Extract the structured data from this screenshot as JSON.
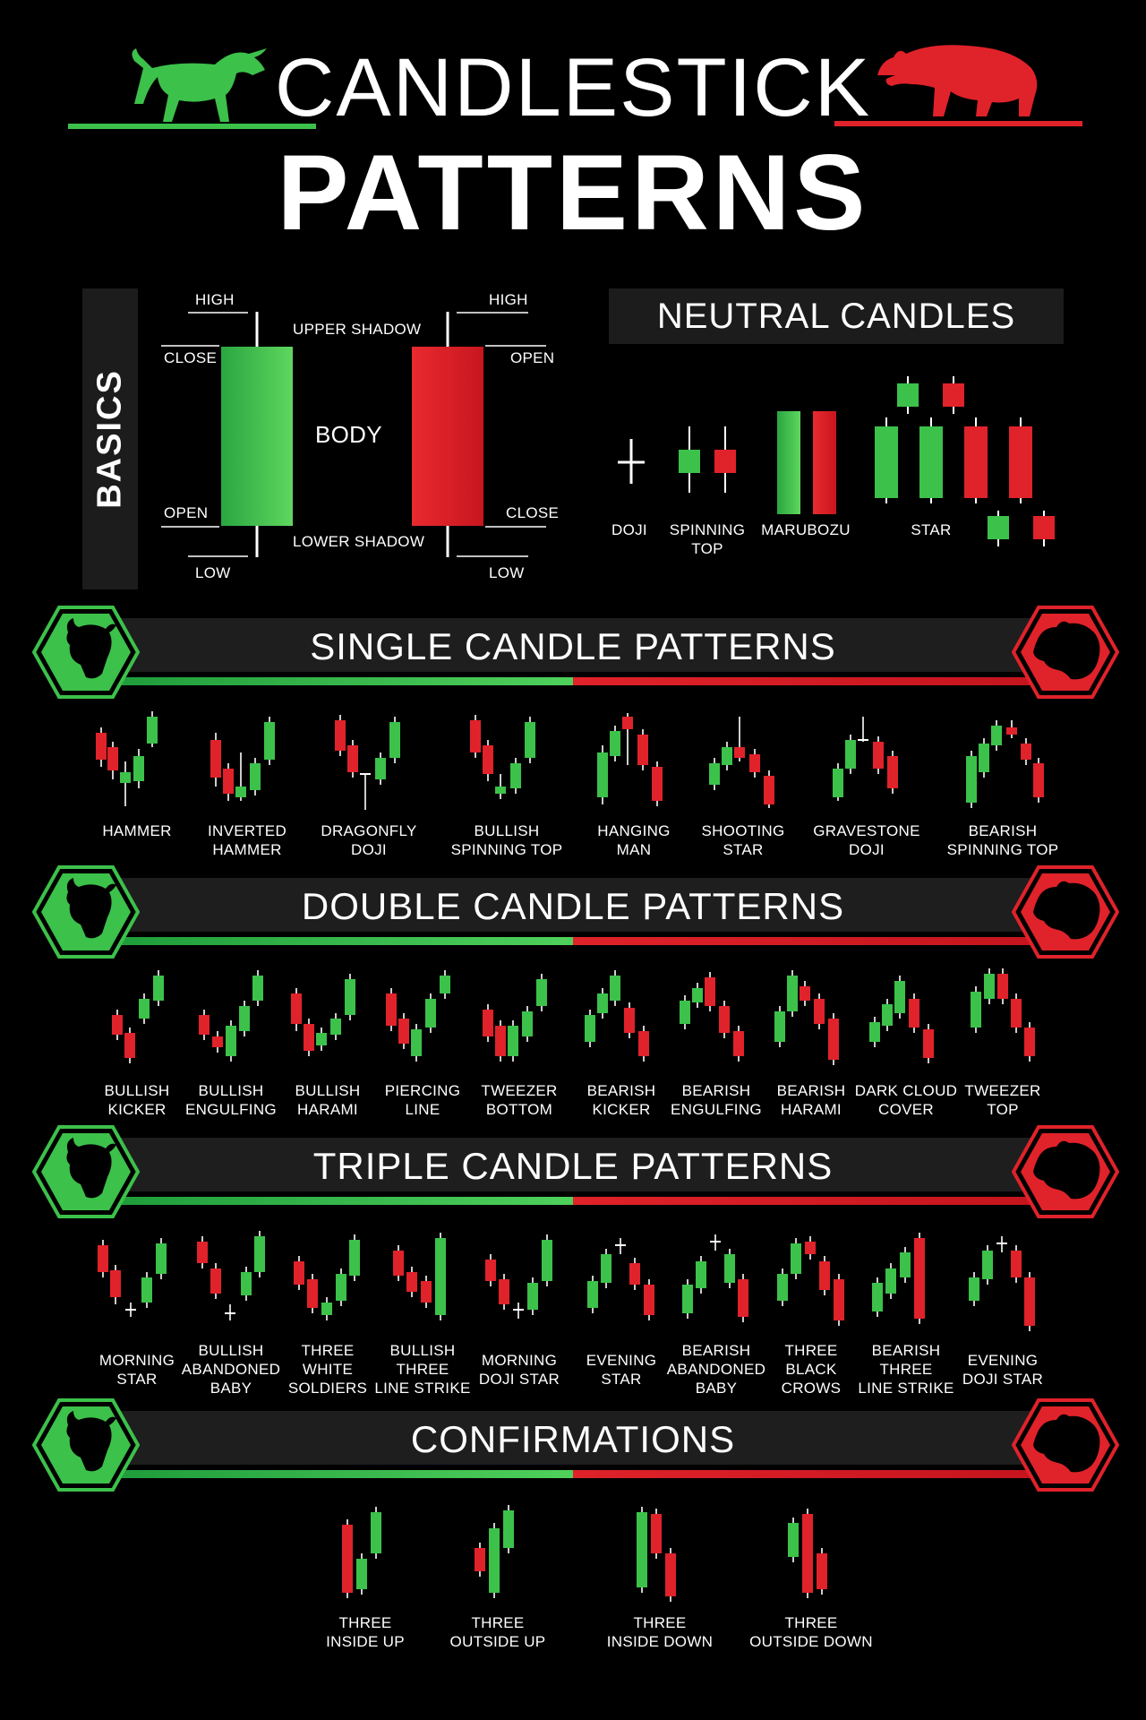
{
  "header": {
    "title_line1": "CANDLESTICK",
    "title_line2": "PATTERNS",
    "bull_icon": "bull-icon",
    "bear_icon": "bear-icon"
  },
  "colors": {
    "green": "#3cc14a",
    "red": "#e0222a",
    "panel": "#1c1c1c"
  },
  "basics": {
    "tab_label": "BASICS",
    "bull": {
      "high": "HIGH",
      "close": "CLOSE",
      "open": "OPEN",
      "low": "LOW"
    },
    "bear": {
      "high": "HIGH",
      "open": "OPEN",
      "close": "CLOSE",
      "low": "LOW"
    },
    "upper_shadow": "UPPER SHADOW",
    "body": "BODY",
    "lower_shadow": "LOWER SHADOW"
  },
  "neutral": {
    "title": "NEUTRAL CANDLES",
    "items": [
      {
        "label1": "DOJI",
        "label2": ""
      },
      {
        "label1": "SPINNING",
        "label2": "TOP"
      },
      {
        "label1": "MARUBOZU",
        "label2": ""
      },
      {
        "label1": "STAR",
        "label2": ""
      }
    ]
  },
  "sections": {
    "single": {
      "title": "SINGLE CANDLE PATTERNS",
      "items": [
        {
          "label1": "HAMMER",
          "label2": ""
        },
        {
          "label1": "INVERTED",
          "label2": "HAMMER"
        },
        {
          "label1": "DRAGONFLY",
          "label2": "DOJI"
        },
        {
          "label1": "BULLISH",
          "label2": "SPINNING TOP"
        },
        {
          "label1": "HANGING",
          "label2": "MAN"
        },
        {
          "label1": "SHOOTING",
          "label2": "STAR"
        },
        {
          "label1": "GRAVESTONE",
          "label2": "DOJI"
        },
        {
          "label1": "BEARISH",
          "label2": "SPINNING TOP"
        }
      ]
    },
    "double": {
      "title": "DOUBLE CANDLE PATTERNS",
      "items": [
        {
          "label1": "BULLISH",
          "label2": "KICKER"
        },
        {
          "label1": "BULLISH",
          "label2": "ENGULFING"
        },
        {
          "label1": "BULLISH",
          "label2": "HARAMI"
        },
        {
          "label1": "PIERCING",
          "label2": "LINE"
        },
        {
          "label1": "TWEEZER",
          "label2": "BOTTOM"
        },
        {
          "label1": "BEARISH",
          "label2": "KICKER"
        },
        {
          "label1": "BEARISH",
          "label2": "ENGULFING"
        },
        {
          "label1": "BEARISH",
          "label2": "HARAMI"
        },
        {
          "label1": "DARK CLOUD",
          "label2": "COVER"
        },
        {
          "label1": "TWEEZER",
          "label2": "TOP"
        }
      ]
    },
    "triple": {
      "title": "TRIPLE CANDLE PATTERNS",
      "items": [
        {
          "label1": "MORNING",
          "label2": "STAR",
          "label3": ""
        },
        {
          "label1": "BULLISH",
          "label2": "ABANDONED",
          "label3": "BABY"
        },
        {
          "label1": "THREE",
          "label2": "WHITE",
          "label3": "SOLDIERS"
        },
        {
          "label1": "BULLISH",
          "label2": "THREE",
          "label3": "LINE STRIKE"
        },
        {
          "label1": "MORNING",
          "label2": "DOJI STAR",
          "label3": ""
        },
        {
          "label1": "EVENING",
          "label2": "STAR",
          "label3": ""
        },
        {
          "label1": "BEARISH",
          "label2": "ABANDONED",
          "label3": "BABY"
        },
        {
          "label1": "THREE",
          "label2": "BLACK",
          "label3": "CROWS"
        },
        {
          "label1": "BEARISH",
          "label2": "THREE",
          "label3": "LINE STRIKE"
        },
        {
          "label1": "EVENING",
          "label2": "DOJI STAR",
          "label3": ""
        }
      ]
    },
    "confirmations": {
      "title": "CONFIRMATIONS",
      "items": [
        {
          "label1": "THREE",
          "label2": "INSIDE UP"
        },
        {
          "label1": "THREE",
          "label2": "OUTSIDE UP"
        },
        {
          "label1": "THREE",
          "label2": "INSIDE DOWN"
        },
        {
          "label1": "THREE",
          "label2": "OUTSIDE DOWN"
        }
      ]
    }
  }
}
